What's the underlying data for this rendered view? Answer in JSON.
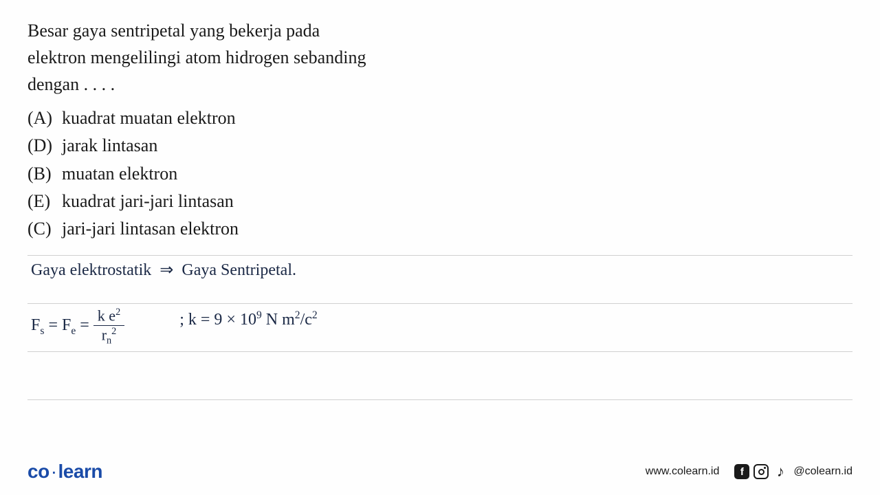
{
  "question": {
    "line1": "Besar gaya sentripetal yang bekerja pada",
    "line2": "elektron mengelilingi atom hidrogen sebanding",
    "line3": "dengan . . . ."
  },
  "options": [
    {
      "label": "(A)",
      "text": "kuadrat muatan elektron"
    },
    {
      "label": "(D)",
      "text": "jarak lintasan"
    },
    {
      "label": "(B)",
      "text": "muatan elektron"
    },
    {
      "label": "(E)",
      "text": "kuadrat jari-jari lintasan"
    },
    {
      "label": "(C)",
      "text": "jari-jari lintasan elektron"
    }
  ],
  "handwriting": {
    "line1_left": "Gaya elektrostatik",
    "line1_arrow": "⇒",
    "line1_right": "Gaya Sentripetal.",
    "formula_lhs": "F",
    "formula_lhs_sub": "s",
    "formula_eq1": " = F",
    "formula_mid_sub": "e",
    "formula_eq2": " = ",
    "frac_top_k": "k e",
    "frac_top_exp": "2",
    "frac_bot_r": "r",
    "frac_bot_sub": "n",
    "frac_bot_exp": "2",
    "constant_prefix": "; k = 9 × 10",
    "constant_exp": "9",
    "constant_units": " N m",
    "constant_u1exp": "2",
    "constant_slash": "/c",
    "constant_u2exp": "2"
  },
  "footer": {
    "logo_part1": "co",
    "logo_dot": "·",
    "logo_part2": "learn",
    "website": "www.colearn.id",
    "fb": "f",
    "tiktok": "♪",
    "handle": "@colearn.id"
  },
  "colors": {
    "bg": "#fefefe",
    "text": "#1a1a1a",
    "handwriting": "#1a2845",
    "rule": "#d0d0d0",
    "brand": "#1a4ba8"
  }
}
